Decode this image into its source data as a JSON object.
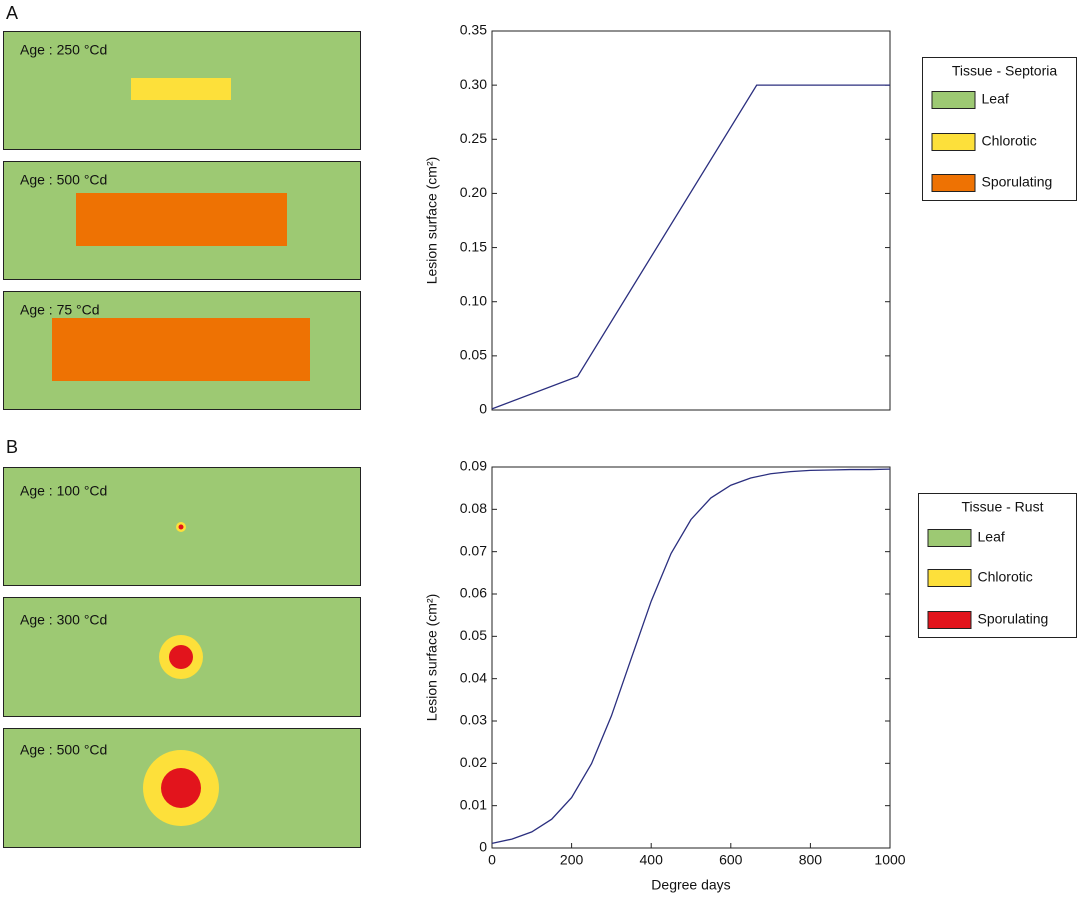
{
  "chart_data": [
    {
      "type": "line",
      "panel_label": "A",
      "leaf_ages": [
        "Age : 250 °Cd",
        "Age : 500 °Cd",
        "Age : 75 °Cd"
      ],
      "y_label": "Lesion surface (cm²)",
      "x": [
        0,
        215,
        665,
        1000
      ],
      "series": [
        {
          "color": "#2b2f7f",
          "values": [
            0.001,
            0.031,
            0.3,
            0.3
          ]
        }
      ],
      "xlim": [
        0,
        1000
      ],
      "ylim": [
        0,
        0.35
      ],
      "yticks": [
        0,
        0.05,
        {
          "value": 0.1,
          "label": "0.10"
        },
        0.15,
        {
          "value": 0.2,
          "label": "0.20"
        },
        0.25,
        {
          "value": 0.3,
          "label": "0.30"
        },
        0.35
      ],
      "legend": {
        "title": "Tissue - Septoria",
        "entries": [
          {
            "name": "Leaf",
            "color": "#9dc973"
          },
          {
            "name": "Chlorotic",
            "color": "#fde03a"
          },
          {
            "name": "Sporulating",
            "color": "#ee7203"
          }
        ]
      }
    },
    {
      "type": "line",
      "panel_label": "B",
      "leaf_ages": [
        "Age : 100 °Cd",
        "Age : 300 °Cd",
        "Age : 500 °Cd"
      ],
      "y_label": "Lesion surface (cm²)",
      "x_label": "Degree days",
      "x": [
        0,
        50,
        100,
        150,
        200,
        250,
        300,
        350,
        400,
        450,
        500,
        550,
        600,
        650,
        700,
        750,
        800,
        850,
        900,
        950,
        1000
      ],
      "series": [
        {
          "color": "#2b2f7f",
          "values": [
            0.0011,
            0.0021,
            0.0038,
            0.0068,
            0.0119,
            0.0199,
            0.0312,
            0.0448,
            0.0583,
            0.0696,
            0.0776,
            0.0827,
            0.0857,
            0.0874,
            0.0884,
            0.0889,
            0.0892,
            0.0893,
            0.0894,
            0.0894,
            0.0895
          ]
        }
      ],
      "xlim": [
        0,
        1000
      ],
      "ylim": [
        0,
        0.09
      ],
      "xticks": [
        0,
        200,
        400,
        600,
        800,
        1000
      ],
      "yticks": [
        0,
        0.01,
        0.02,
        0.03,
        0.04,
        0.05,
        0.06,
        0.07,
        0.08,
        0.09
      ],
      "legend": {
        "title": "Tissue - Rust",
        "entries": [
          {
            "name": "Leaf",
            "color": "#9dc973"
          },
          {
            "name": "Chlorotic",
            "color": "#fde03a"
          },
          {
            "name": "Sporulating",
            "color": "#e2141c"
          }
        ]
      }
    }
  ]
}
